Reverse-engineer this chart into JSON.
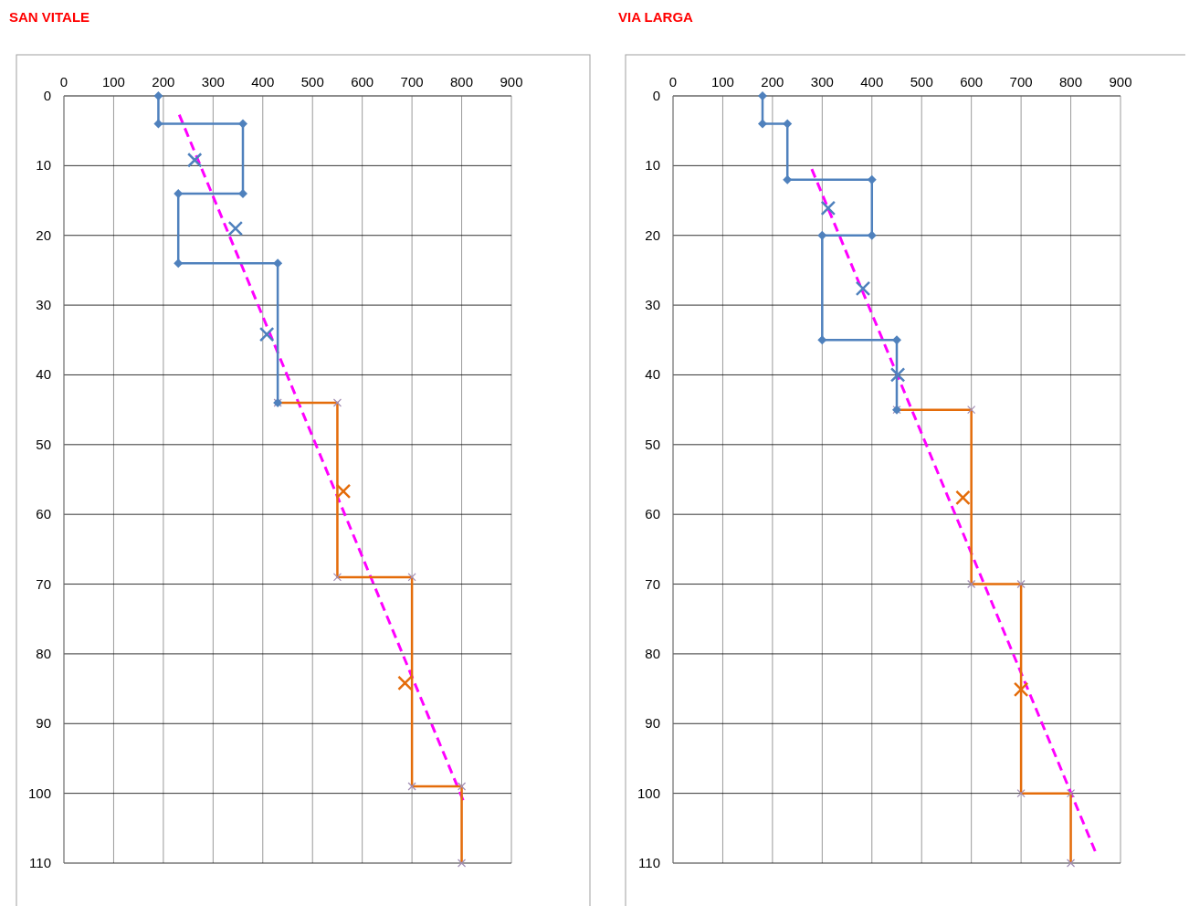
{
  "chart_data": [
    {
      "type": "line",
      "title": "SAN VITALE",
      "xlim": [
        0,
        900
      ],
      "xticks": [
        0,
        100,
        200,
        300,
        400,
        500,
        600,
        700,
        800,
        900
      ],
      "ylim": [
        110,
        0
      ],
      "yticks": [
        0,
        10,
        20,
        30,
        40,
        50,
        60,
        70,
        80,
        90,
        100,
        110
      ],
      "grid": true,
      "series": [
        {
          "color": "#4f81bd",
          "marker": "diamond",
          "x": [
            190,
            190,
            360,
            360,
            230,
            230,
            430,
            430
          ],
          "values": [
            0,
            4,
            4,
            14,
            14,
            24,
            24,
            44
          ]
        },
        {
          "color": "#e46c0a",
          "marker": "cross",
          "x": [
            430,
            550,
            550,
            700,
            700,
            800,
            800
          ],
          "values": [
            44,
            44,
            69,
            69,
            99,
            99,
            110
          ]
        },
        {
          "type": "scatter",
          "color": "#4f81bd",
          "marker": "cross",
          "x": [
            263,
            345,
            408
          ],
          "values": [
            9.2,
            19,
            34.2
          ]
        },
        {
          "type": "scatter",
          "color": "#e46c0a",
          "marker": "cross",
          "x": [
            562,
            686
          ],
          "values": [
            56.7,
            84.2
          ]
        },
        {
          "color": "#ff00ff",
          "marker": "none",
          "line_style": "dashed",
          "x": [
            232,
            803
          ],
          "values": [
            2.7,
            101
          ]
        }
      ]
    },
    {
      "type": "line",
      "title": "VIA LARGA",
      "xlim": [
        0,
        900
      ],
      "xticks": [
        0,
        100,
        200,
        300,
        400,
        500,
        600,
        700,
        800,
        900
      ],
      "ylim": [
        110,
        0
      ],
      "yticks": [
        0,
        10,
        20,
        30,
        40,
        50,
        60,
        70,
        80,
        90,
        100,
        110
      ],
      "grid": true,
      "series": [
        {
          "color": "#4f81bd",
          "marker": "diamond",
          "x": [
            180,
            180,
            230,
            230,
            400,
            400,
            300,
            300,
            450,
            450
          ],
          "values": [
            0,
            4,
            4,
            12,
            12,
            20,
            20,
            35,
            35,
            45
          ]
        },
        {
          "color": "#e46c0a",
          "marker": "cross",
          "x": [
            450,
            600,
            600,
            700,
            700,
            800,
            800
          ],
          "values": [
            45,
            45,
            70,
            70,
            100,
            100,
            110
          ]
        },
        {
          "type": "scatter",
          "color": "#4f81bd",
          "marker": "cross",
          "x": [
            312,
            382,
            452
          ],
          "values": [
            16.1,
            27.6,
            40
          ]
        },
        {
          "type": "scatter",
          "color": "#e46c0a",
          "marker": "cross",
          "x": [
            583,
            700
          ],
          "values": [
            57.6,
            85.1
          ]
        },
        {
          "color": "#ff00ff",
          "marker": "none",
          "line_style": "dashed",
          "x": [
            279,
            849
          ],
          "values": [
            10.5,
            108.3
          ]
        }
      ]
    }
  ]
}
